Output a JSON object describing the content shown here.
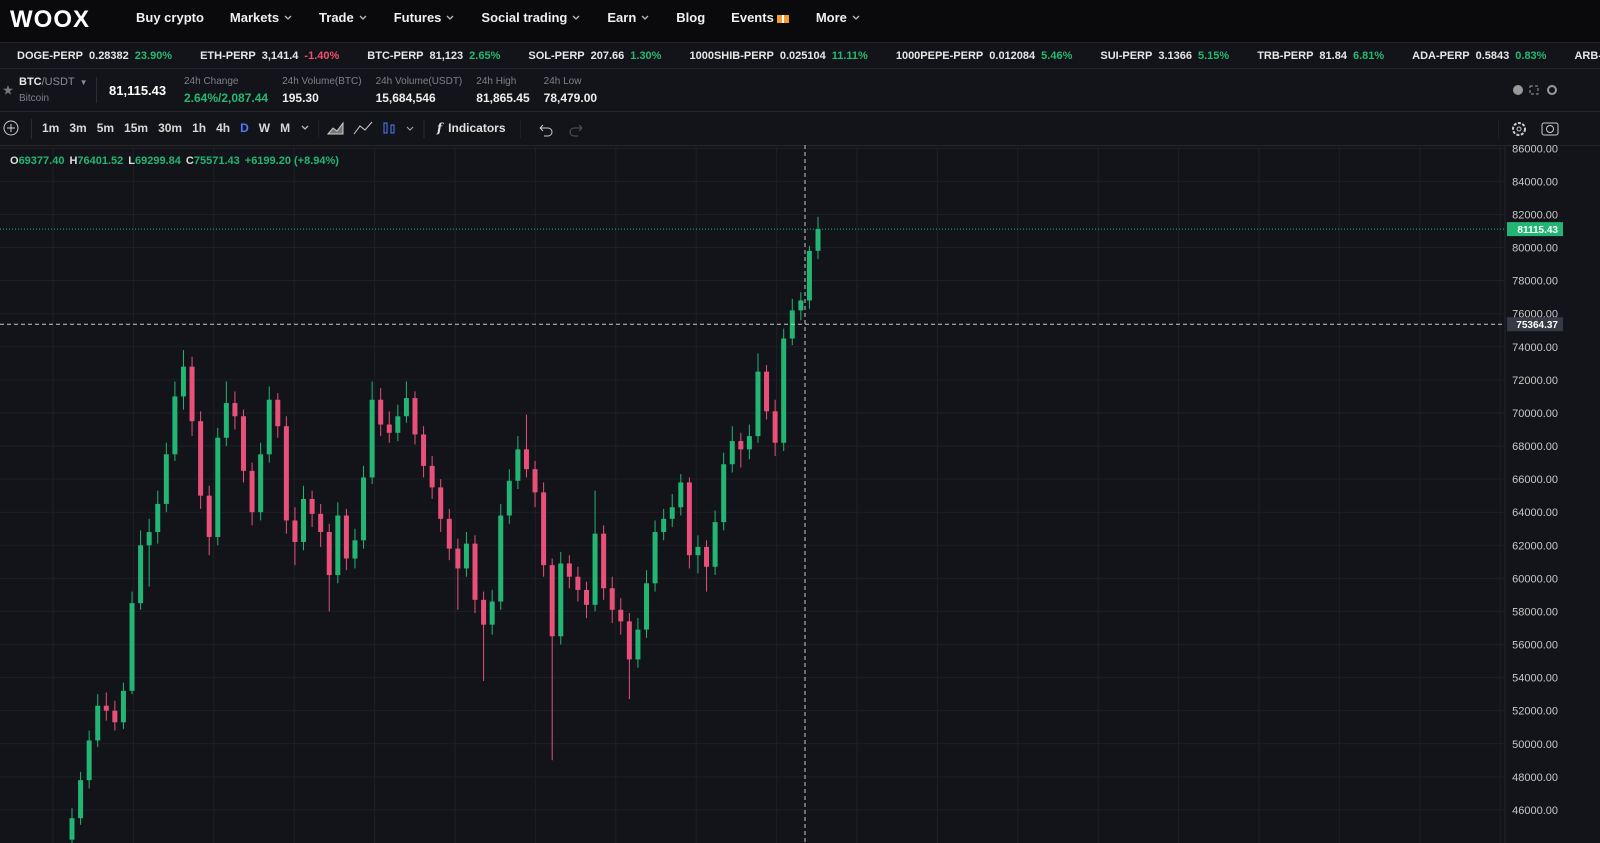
{
  "nav": {
    "logo": "WOOX",
    "items": [
      "Buy crypto",
      "Markets",
      "Trade",
      "Futures",
      "Social trading",
      "Earn",
      "Blog",
      "Events",
      "More"
    ]
  },
  "ticker": [
    {
      "name": "DOGE-PERP",
      "price": "0.28382",
      "change": "23.90%",
      "color": "#25b870"
    },
    {
      "name": "ETH-PERP",
      "price": "3,141.4",
      "change": "-1.40%",
      "color": "#ef4f6c"
    },
    {
      "name": "BTC-PERP",
      "price": "81,123",
      "change": "2.65%",
      "color": "#25b870"
    },
    {
      "name": "SOL-PERP",
      "price": "207.66",
      "change": "1.30%",
      "color": "#25b870"
    },
    {
      "name": "1000SHIB-PERP",
      "price": "0.025104",
      "change": "11.11%",
      "color": "#25b870"
    },
    {
      "name": "1000PEPE-PERP",
      "price": "0.012084",
      "change": "5.46%",
      "color": "#25b870"
    },
    {
      "name": "SUI-PERP",
      "price": "3.1366",
      "change": "5.15%",
      "color": "#25b870"
    },
    {
      "name": "TRB-PERP",
      "price": "81.84",
      "change": "6.81%",
      "color": "#25b870"
    },
    {
      "name": "ADA-PERP",
      "price": "0.5843",
      "change": "0.83%",
      "color": "#25b870"
    },
    {
      "name": "ARB-PERP"
    }
  ],
  "symbol": {
    "base": "BTC",
    "quote": "/USDT",
    "fullname": "Bitcoin",
    "last": "81,115.43",
    "stats": [
      {
        "label": "24h Change",
        "value": "2.64%/2,087.44",
        "color": "#25b870"
      },
      {
        "label": "24h Volume(BTC)",
        "value": "195.30"
      },
      {
        "label": "24h Volume(USDT)",
        "value": "15,684,546"
      },
      {
        "label": "24h High",
        "value": "81,865.45"
      },
      {
        "label": "24h Low",
        "value": "78,479.00"
      }
    ]
  },
  "toolbar": {
    "intervals": [
      "1m",
      "3m",
      "5m",
      "15m",
      "30m",
      "1h",
      "4h",
      "D",
      "W",
      "M"
    ],
    "active": 7,
    "indicators": "Indicators"
  },
  "chart_data": {
    "type": "candlestick",
    "ohlc": [
      {
        "label": "O",
        "value": "69377.40"
      },
      {
        "label": "H",
        "value": "76401.52"
      },
      {
        "label": "L",
        "value": "69299.84"
      },
      {
        "label": "C",
        "value": "75571.43"
      }
    ],
    "change": "+6199.20 (+8.94%)",
    "up_color": "#22b573",
    "down_color": "#e8507a",
    "ylim": [
      44000,
      86200
    ],
    "yticks": [
      {
        "value": 46000,
        "label": "46000.00"
      },
      {
        "value": 48000,
        "label": "48000.00"
      },
      {
        "value": 50000,
        "label": "50000.00"
      },
      {
        "value": 52000,
        "label": "52000.00"
      },
      {
        "value": 54000,
        "label": "54000.00"
      },
      {
        "value": 56000,
        "label": "56000.00"
      },
      {
        "value": 58000,
        "label": "58000.00"
      },
      {
        "value": 60000,
        "label": "60000.00"
      },
      {
        "value": 62000,
        "label": "62000.00"
      },
      {
        "value": 64000,
        "label": "64000.00"
      },
      {
        "value": 66000,
        "label": "66000.00"
      },
      {
        "value": 68000,
        "label": "68000.00"
      },
      {
        "value": 70000,
        "label": "70000.00"
      },
      {
        "value": 72000,
        "label": "72000.00"
      },
      {
        "value": 74000,
        "label": "74000.00"
      },
      {
        "value": 76000,
        "label": "76000.00"
      },
      {
        "value": 78000,
        "label": "78000.00"
      },
      {
        "value": 80000,
        "label": "80000.00"
      },
      {
        "value": 82000,
        "label": "82000.00"
      },
      {
        "value": 84000,
        "label": "84000.00"
      },
      {
        "value": 86000,
        "label": "86000.00"
      }
    ],
    "grid": true,
    "price_line": {
      "value": 81115.43,
      "color": "#22b573"
    },
    "crosshair": {
      "value": 75364.37
    },
    "candles": [
      [
        44200,
        46100,
        43800,
        45500
      ],
      [
        45500,
        48300,
        45100,
        47800
      ],
      [
        47800,
        50800,
        47300,
        50200
      ],
      [
        50200,
        53000,
        49800,
        52300
      ],
      [
        52300,
        53100,
        51400,
        52000
      ],
      [
        52000,
        52600,
        50800,
        51300
      ],
      [
        51300,
        53700,
        50900,
        53200
      ],
      [
        53200,
        59200,
        53000,
        58500
      ],
      [
        58500,
        62900,
        58100,
        62000
      ],
      [
        62000,
        63600,
        59500,
        62800
      ],
      [
        62800,
        65300,
        62100,
        64500
      ],
      [
        64500,
        68200,
        64000,
        67500
      ],
      [
        67500,
        71900,
        67100,
        71000
      ],
      [
        71000,
        73800,
        70200,
        72800
      ],
      [
        72800,
        73400,
        68600,
        69500
      ],
      [
        69500,
        70100,
        64200,
        65000
      ],
      [
        65000,
        65600,
        61400,
        62500
      ],
      [
        62500,
        69100,
        62000,
        68500
      ],
      [
        68500,
        71900,
        68000,
        70600
      ],
      [
        70600,
        71300,
        69000,
        69800
      ],
      [
        69800,
        70200,
        65800,
        66500
      ],
      [
        66500,
        67000,
        63200,
        64000
      ],
      [
        64000,
        68200,
        63500,
        67500
      ],
      [
        67500,
        71600,
        67000,
        70800
      ],
      [
        70800,
        71200,
        68500,
        69200
      ],
      [
        69200,
        69800,
        62700,
        63500
      ],
      [
        63500,
        64300,
        60800,
        62200
      ],
      [
        62200,
        65600,
        61700,
        64800
      ],
      [
        64800,
        65300,
        63100,
        63900
      ],
      [
        63900,
        64500,
        61900,
        62800
      ],
      [
        62800,
        63300,
        58000,
        60200
      ],
      [
        60200,
        64600,
        59700,
        63800
      ],
      [
        63800,
        64200,
        60500,
        61200
      ],
      [
        61200,
        63000,
        60600,
        62300
      ],
      [
        62300,
        66800,
        61800,
        66100
      ],
      [
        66100,
        71900,
        65700,
        70800
      ],
      [
        70800,
        71500,
        68600,
        69300
      ],
      [
        69300,
        70100,
        68200,
        68800
      ],
      [
        68800,
        70500,
        68300,
        69800
      ],
      [
        69800,
        71900,
        69400,
        70900
      ],
      [
        70900,
        71300,
        68100,
        68700
      ],
      [
        68700,
        69200,
        66100,
        66800
      ],
      [
        66800,
        67400,
        64800,
        65500
      ],
      [
        65500,
        66000,
        62800,
        63600
      ],
      [
        63600,
        64200,
        61100,
        61800
      ],
      [
        61800,
        62400,
        58100,
        60600
      ],
      [
        60600,
        62800,
        60100,
        62100
      ],
      [
        62100,
        62600,
        57900,
        58700
      ],
      [
        58700,
        59200,
        53800,
        57200
      ],
      [
        57200,
        59300,
        56600,
        58600
      ],
      [
        58600,
        64500,
        58100,
        63800
      ],
      [
        63800,
        66600,
        63300,
        65900
      ],
      [
        65900,
        68600,
        65400,
        67800
      ],
      [
        67800,
        69900,
        66100,
        66600
      ],
      [
        66600,
        67100,
        64300,
        65200
      ],
      [
        65200,
        65800,
        60100,
        60800
      ],
      [
        60800,
        61200,
        49000,
        56500
      ],
      [
        56500,
        61600,
        56000,
        60900
      ],
      [
        60900,
        61400,
        59400,
        60100
      ],
      [
        60100,
        60700,
        58600,
        59300
      ],
      [
        59300,
        59800,
        57600,
        58400
      ],
      [
        58400,
        65300,
        58000,
        62700
      ],
      [
        62700,
        63200,
        58700,
        59400
      ],
      [
        59400,
        60100,
        57300,
        58100
      ],
      [
        58100,
        58800,
        56600,
        57400
      ],
      [
        57400,
        57900,
        52700,
        55100
      ],
      [
        55100,
        57600,
        54600,
        56900
      ],
      [
        56900,
        60500,
        56400,
        59700
      ],
      [
        59700,
        63500,
        59200,
        62800
      ],
      [
        62800,
        64200,
        62300,
        63600
      ],
      [
        63600,
        65100,
        63100,
        64300
      ],
      [
        64300,
        66300,
        63800,
        65800
      ],
      [
        65800,
        66100,
        60600,
        61400
      ],
      [
        61400,
        62600,
        60300,
        61900
      ],
      [
        61900,
        62300,
        59200,
        60700
      ],
      [
        60700,
        64100,
        60200,
        63400
      ],
      [
        63400,
        67600,
        62900,
        66900
      ],
      [
        66900,
        69200,
        66400,
        68300
      ],
      [
        68300,
        68800,
        66700,
        67800
      ],
      [
        67800,
        69300,
        67200,
        68600
      ],
      [
        68600,
        73600,
        68200,
        72500
      ],
      [
        72500,
        72900,
        69600,
        70100
      ],
      [
        70100,
        70800,
        67400,
        68200
      ],
      [
        68200,
        75100,
        67700,
        74500
      ],
      [
        74500,
        76900,
        74100,
        76200
      ],
      [
        76200,
        77300,
        75600,
        76800
      ],
      [
        76800,
        80100,
        76300,
        79800
      ],
      [
        79800,
        81865,
        79300,
        81115.43
      ]
    ]
  }
}
